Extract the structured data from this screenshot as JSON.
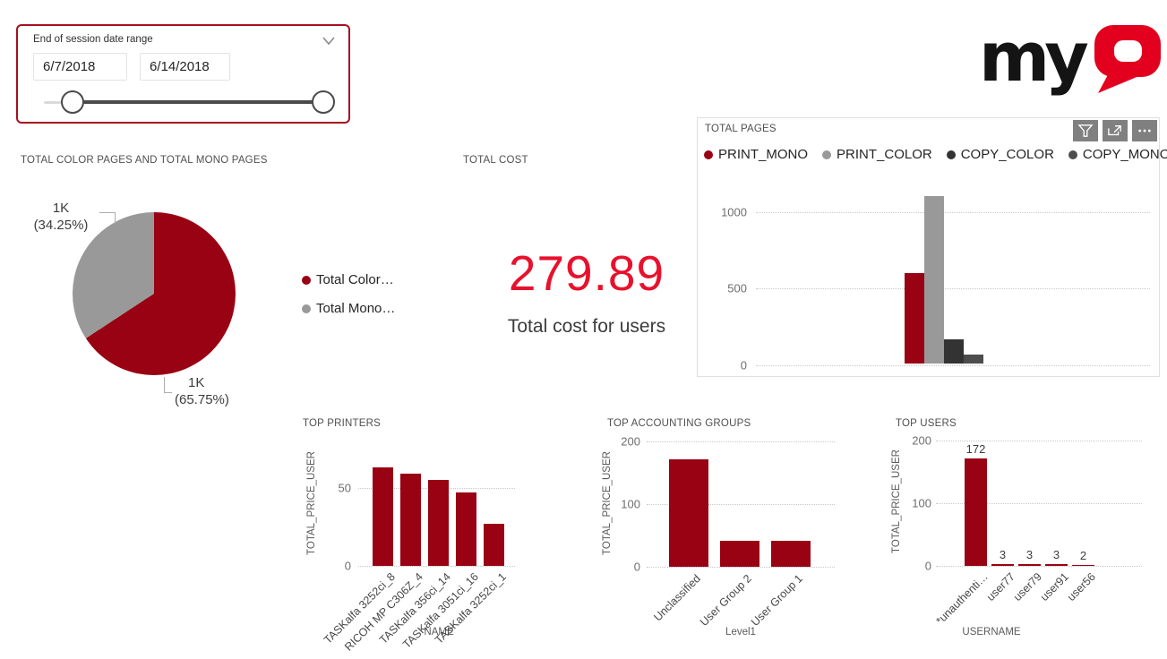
{
  "colors": {
    "brand_dark_red": "#990212",
    "bright_red": "#E8112D",
    "logo_red": "#E3001E",
    "series_gray": "#999999",
    "series_charcoal": "#333333",
    "series_dark_gray": "#4D4D4D",
    "slicer_border_red": "#A6101E"
  },
  "slicer": {
    "title": "End of session date range",
    "start_date": "6/7/2018",
    "end_date": "6/14/2018"
  },
  "logo": {
    "text": "myQ",
    "black_part": "my",
    "red_part": "Q"
  },
  "toolbar": {
    "icons": [
      "filter-icon",
      "focus-mode-icon",
      "more-options-icon"
    ]
  },
  "chart_data": [
    {
      "type": "pie",
      "title": "TOTAL COLOR PAGES AND TOTAL MONO PAGES",
      "slices": [
        {
          "name": "Total Color…",
          "value_label": "1K",
          "percent": 65.75,
          "color": "#990212"
        },
        {
          "name": "Total Mono…",
          "value_label": "1K",
          "percent": 34.25,
          "color": "#999999"
        }
      ],
      "callouts": {
        "top": {
          "line1": "1K",
          "line2": "(34.25%)"
        },
        "bottom": {
          "line1": "1K",
          "line2": "(65.75%)"
        }
      },
      "legend_position": "right"
    },
    {
      "type": "card",
      "title": "TOTAL COST",
      "value": "279.89",
      "caption": "Total cost for users"
    },
    {
      "type": "bar",
      "title": "TOTAL PAGES",
      "series": [
        {
          "name": "PRINT_MONO",
          "value": 590,
          "color": "#990212"
        },
        {
          "name": "PRINT_COLOR",
          "value": 1090,
          "color": "#999999"
        },
        {
          "name": "COPY_COLOR",
          "value": 160,
          "color": "#333333"
        },
        {
          "name": "COPY_MONO",
          "value": 60,
          "color": "#4D4D4D"
        }
      ],
      "yticks": [
        0,
        500,
        1000
      ],
      "ylim": [
        0,
        1150
      ],
      "grid": "dotted",
      "legend_position": "top"
    },
    {
      "type": "bar",
      "title": "TOP PRINTERS",
      "xlabel": "NAME",
      "ylabel": "TOTAL_PRICE_USER",
      "categories": [
        "TASKalfa 3252ci_8",
        "RICOH MP C306Z_4",
        "TASKalfa 356ci_14",
        "TASKalfa 3051ci_16",
        "TASKalfa 3252ci_1"
      ],
      "values": [
        63,
        59,
        55,
        47,
        27
      ],
      "yticks": [
        0,
        50
      ],
      "ylim": [
        0,
        65
      ],
      "bar_color": "#990212",
      "grid": "dotted"
    },
    {
      "type": "bar",
      "title": "TOP ACCOUNTING GROUPS",
      "xlabel": "Level1",
      "ylabel": "TOTAL_PRICE_USER",
      "categories": [
        "Unclassified",
        "User Group 2",
        "User Group 1"
      ],
      "values": [
        172,
        42,
        41
      ],
      "yticks": [
        0,
        100,
        200
      ],
      "ylim": [
        0,
        210
      ],
      "bar_color": "#990212",
      "grid": "dotted"
    },
    {
      "type": "bar",
      "title": "TOP USERS",
      "xlabel": "USERNAME",
      "ylabel": "TOTAL_PRICE_USER",
      "categories": [
        "*unauthenti…",
        "user77",
        "user79",
        "user91",
        "user56"
      ],
      "values": [
        172,
        3,
        3,
        3,
        2
      ],
      "data_labels": [
        "172",
        "3",
        "3",
        "3",
        "2"
      ],
      "yticks": [
        0,
        100,
        200
      ],
      "ylim": [
        0,
        210
      ],
      "bar_color": "#990212",
      "grid": "dotted"
    }
  ]
}
